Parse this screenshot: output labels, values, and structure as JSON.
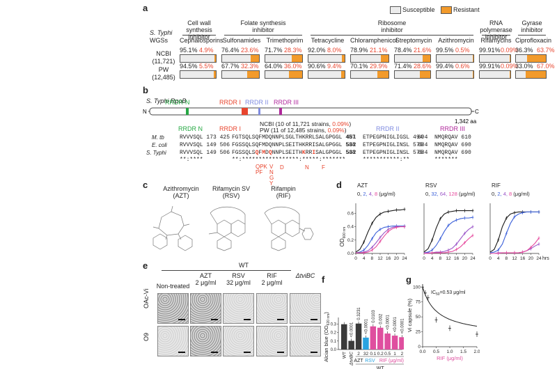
{
  "panels": {
    "a": "a",
    "b": "b",
    "c": "c",
    "d": "d",
    "e": "e",
    "f": "f",
    "g": "g"
  },
  "panel_a": {
    "legend": {
      "susceptible": "Susceptible",
      "resistant": "Resistant",
      "susceptible_color": "#ececec",
      "resistant_color": "#f29a2b"
    },
    "row_header_1": "S. Typhi",
    "row_header_2": "WGSs",
    "groups": [
      {
        "name": "Cell wall synthesis\ninhibitor",
        "drugs": [
          "Cephalosporins"
        ]
      },
      {
        "name": "Folate synthesis\ninhibitor",
        "drugs": [
          "Sulfonamides",
          "Trimethoprim"
        ]
      },
      {
        "name": "Ribosome\ninhibitor",
        "drugs": [
          "Tetracycline",
          "Chloramphenicol",
          "Streptomycin",
          "Azithromycin"
        ]
      },
      {
        "name": "RNA polymerase\ninhibitor",
        "drugs": [
          "Rifamycins"
        ]
      },
      {
        "name": "Gyrase\ninhibitor",
        "drugs": [
          "Ciprofloxacin"
        ]
      }
    ],
    "rows": [
      {
        "label": "NCBI",
        "count": "(11,721)",
        "susceptible": [
          "95.1%",
          "76.4%",
          "71.7%",
          "92.0%",
          "78.9%",
          "78.4%",
          "99.5%",
          "99.91%",
          "36.3%"
        ],
        "resistant": [
          "4.9%",
          "23.6%",
          "28.3%",
          "8.0%",
          "21.1%",
          "21.6%",
          "0.5%",
          "0.09%",
          "63.7%"
        ],
        "resistant_fraction": [
          0.049,
          0.236,
          0.283,
          0.08,
          0.211,
          0.216,
          0.005,
          0.0009,
          0.637
        ]
      },
      {
        "label": "PW",
        "count": "(12,485)",
        "susceptible": [
          "94.5%",
          "67.7%",
          "64.0%",
          "90.6%",
          "70.1%",
          "71.4%",
          "99.4%",
          "99.91%",
          "33.0%"
        ],
        "resistant": [
          "5.5%",
          "32.3%",
          "36.0%",
          "9.4%",
          "29.9%",
          "28.6%",
          "0.6%",
          "0.09%",
          "67.0%"
        ],
        "resistant_fraction": [
          0.055,
          0.323,
          0.36,
          0.094,
          0.299,
          0.286,
          0.006,
          0.0009,
          0.67
        ]
      }
    ]
  },
  "panel_b": {
    "protein_label": "S. Typhi RpoB",
    "n_term": "N",
    "c_term": "C",
    "length": "1,342 aa",
    "regions_top": [
      {
        "name": "RRDR-N",
        "color": "#27a844"
      },
      {
        "name": "RRDR I",
        "color": "#e8452e"
      },
      {
        "name": "RRDR II",
        "color": "#7f8be0"
      },
      {
        "name": "RRDR III",
        "color": "#b0279b"
      }
    ],
    "section_titles": [
      {
        "name": "RRDR N",
        "color": "#27a844"
      },
      {
        "name": "RRDR I",
        "color": "#e8452e"
      },
      {
        "name": "RRDR II",
        "color": "#7f8be0"
      },
      {
        "name": "RRDR III",
        "color": "#b0279b"
      }
    ],
    "ncbi_note_a": "NCBI (10 of 11,721 strains, ",
    "ncbi_note_b": "0.09%",
    "ncbi_note_c": ")",
    "pw_note_a": "PW (11 of 12,485 strains, ",
    "pw_note_b": "0.09%",
    "pw_note_c": ")",
    "sequences": [
      {
        "species": "M. tb",
        "n": "RVVVSQL 173 425",
        "i": "FGTSQLSQFMDQNNPLSGLTHKRRLSALGPGGL 457",
        "ii": "481  ETPEGPNIGLIGSL 494",
        "iii": "604  NMQRQAV 610"
      },
      {
        "species": "E. coli",
        "n": "RVVVSQL 149 506",
        "i": "FGSSQLSQFMDQNNPLSEITHKRRISALGPGGL 538",
        "ii": "562  ETPEGPNIGLINSL 575",
        "iii": "684  NMQRQAV 690"
      },
      {
        "species": "S. Typhi",
        "n": "RVVVSQL 149 506",
        "i_pre": "FGSSQLS",
        "i_red1": "Q",
        "i_mid1": "F",
        "i_red2": "M",
        "i_mid2": "D",
        "i_red3": "Q",
        "i_mid3": "NNPLSEITH",
        "i_red4": "K",
        "i_mid4": "RR",
        "i_red5": "I",
        "i_post": "SALGPGGL 538",
        "ii": "562  ETPEGPNIGLINSL 575",
        "iii": "684  NMQRQAV 690"
      }
    ],
    "conservation": {
      "n": "**:****",
      "i": "**:*****************:*****:*******",
      "ii": "***********:**",
      "iii": "*******"
    },
    "mutations": {
      "q": "QPK\nPF",
      "m": "V\nN\nG\nY",
      "d": "D",
      "k": "N",
      "i": "F"
    }
  },
  "panel_c": {
    "structures": [
      {
        "name": "Azithromycin",
        "abbr": "(AZT)"
      },
      {
        "name": "Rifamycin SV",
        "abbr": "(RSV)"
      },
      {
        "name": "Rifampin",
        "abbr": "(RIF)"
      }
    ]
  },
  "panel_d": {
    "ylabel": "OD",
    "ylabel_sub": "600 nm",
    "xunit": "hrs",
    "conc_unit": "(μg/ml)",
    "charts": [
      {
        "title": "AZT",
        "conc": [
          "0",
          "2",
          "4",
          "8"
        ]
      },
      {
        "title": "RSV",
        "conc": [
          "0",
          "32",
          "64",
          "128"
        ]
      },
      {
        "title": "RIF",
        "conc": [
          "0",
          "2",
          "4",
          "8"
        ]
      }
    ],
    "series_colors": [
      "#1a1a1a",
      "#3a5fd9",
      "#9a55c8",
      "#e6489c"
    ]
  },
  "panel_e": {
    "header": "WT",
    "columns": [
      {
        "line1": "Non-treated",
        "line2": ""
      },
      {
        "line1": "AZT",
        "line2": "2 μg/ml"
      },
      {
        "line1": "RSV",
        "line2": "32 μg/ml"
      },
      {
        "line1": "RIF",
        "line2": "2 μg/ml"
      },
      {
        "line1": "ΔtviBC",
        "line2": ""
      }
    ],
    "rows": [
      "OAc-Vi",
      "O9"
    ]
  },
  "panel_f": {
    "ylabel": "Alcian blue (OD",
    "ylabel_sub": "620 nm",
    "ylabel_end": ")",
    "wt_bottom": "WT",
    "group_labels": {
      "azt": "AZT",
      "rsv": "RSV",
      "rif": "RIF (μg/ml)"
    },
    "colors": {
      "dark": "#3a3a3a",
      "blue": "#29a3e0",
      "pink": "#df4f9f"
    }
  },
  "panel_g": {
    "ylabel": "Vi capsule (%)",
    "xlabel": "RIF (μg/ml)",
    "ic50": "IC",
    "ic50_sub": "50",
    "ic50_val": "=0.53 μg/ml"
  },
  "chart_data": [
    {
      "type": "line",
      "title": "AZT",
      "xlabel": "hrs",
      "ylabel": "OD 600 nm",
      "x": [
        0,
        2,
        4,
        6,
        8,
        10,
        12,
        14,
        16,
        18,
        20,
        22,
        24
      ],
      "xticks": [
        0,
        4,
        8,
        12,
        16,
        20,
        24
      ],
      "yticks": [
        0.0,
        0.2,
        0.4,
        0.6
      ],
      "ylim": [
        0,
        0.75
      ],
      "series": [
        {
          "name": "0",
          "values": [
            0.02,
            0.06,
            0.17,
            0.32,
            0.45,
            0.54,
            0.59,
            0.62,
            0.63,
            0.64,
            0.65,
            0.65,
            0.66
          ]
        },
        {
          "name": "2",
          "values": [
            0.01,
            0.02,
            0.05,
            0.12,
            0.22,
            0.31,
            0.36,
            0.39,
            0.4,
            0.41,
            0.41,
            0.41,
            0.41
          ]
        },
        {
          "name": "4",
          "values": [
            0.01,
            0.01,
            0.02,
            0.04,
            0.09,
            0.16,
            0.24,
            0.31,
            0.36,
            0.39,
            0.4,
            0.4,
            0.4
          ]
        },
        {
          "name": "8",
          "values": [
            0.01,
            0.01,
            0.01,
            0.02,
            0.05,
            0.1,
            0.18,
            0.26,
            0.33,
            0.37,
            0.39,
            0.4,
            0.4
          ]
        }
      ]
    },
    {
      "type": "line",
      "title": "RSV",
      "xlabel": "hrs",
      "ylabel": "OD 600 nm",
      "x": [
        0,
        2,
        4,
        6,
        8,
        10,
        12,
        14,
        16,
        18,
        20,
        22,
        24
      ],
      "xticks": [
        0,
        4,
        8,
        12,
        16,
        20,
        24
      ],
      "yticks": [
        0.0,
        0.2,
        0.4,
        0.6
      ],
      "ylim": [
        0,
        0.75
      ],
      "series": [
        {
          "name": "0",
          "values": [
            0.02,
            0.07,
            0.2,
            0.38,
            0.52,
            0.59,
            0.62,
            0.63,
            0.64,
            0.64,
            0.64,
            0.64,
            0.64
          ]
        },
        {
          "name": "32",
          "values": [
            0.01,
            0.02,
            0.05,
            0.12,
            0.22,
            0.33,
            0.42,
            0.47,
            0.5,
            0.52,
            0.53,
            0.53,
            0.54
          ]
        },
        {
          "name": "64",
          "values": [
            0.01,
            0.01,
            0.01,
            0.02,
            0.02,
            0.03,
            0.05,
            0.08,
            0.14,
            0.22,
            0.3,
            0.36,
            0.4
          ]
        },
        {
          "name": "128",
          "values": [
            0.0,
            0.0,
            0.01,
            0.01,
            0.01,
            0.01,
            0.02,
            0.03,
            0.06,
            0.1,
            0.16,
            0.22,
            0.27
          ]
        }
      ]
    },
    {
      "type": "line",
      "title": "RIF",
      "xlabel": "hrs",
      "ylabel": "OD 600 nm",
      "x": [
        0,
        2,
        4,
        6,
        8,
        10,
        12,
        14,
        16,
        18,
        20,
        22,
        24
      ],
      "xticks": [
        0,
        4,
        8,
        12,
        16,
        20,
        24
      ],
      "yticks": [
        0.0,
        0.2,
        0.4,
        0.6
      ],
      "ylim": [
        0,
        0.75
      ],
      "series": [
        {
          "name": "0",
          "values": [
            0.02,
            0.06,
            0.2,
            0.4,
            0.53,
            0.59,
            0.61,
            0.62,
            0.62,
            0.62,
            0.62,
            0.62,
            0.62
          ]
        },
        {
          "name": "2",
          "values": [
            0.01,
            0.02,
            0.05,
            0.14,
            0.3,
            0.45,
            0.55,
            0.59,
            0.61,
            0.62,
            0.62,
            0.62,
            0.62
          ]
        },
        {
          "name": "4",
          "values": [
            0.0,
            0.0,
            0.01,
            0.01,
            0.01,
            0.01,
            0.01,
            0.01,
            0.02,
            0.04,
            0.07,
            0.11,
            0.14
          ]
        },
        {
          "name": "8",
          "values": [
            0.0,
            0.0,
            0.0,
            0.01,
            0.01,
            0.01,
            0.01,
            0.01,
            0.02,
            0.04,
            0.09,
            0.15,
            0.23
          ]
        }
      ]
    },
    {
      "type": "bar",
      "title": "",
      "ylabel": "Alcian blue (OD 620 nm)",
      "categories": [
        "WT",
        "ΔtviBC",
        "2",
        "32",
        "0.1",
        "0.2",
        "0.5",
        "1",
        "2"
      ],
      "values": [
        0.297,
        0.102,
        0.305,
        0.14,
        0.272,
        0.256,
        0.188,
        0.163,
        0.145
      ],
      "groups": [
        "control",
        "control",
        "AZT",
        "RSV",
        "RIF",
        "RIF",
        "RIF",
        "RIF",
        "RIF"
      ],
      "pvalues": [
        "",
        "<0.0001",
        "0.3231",
        "<0.0001",
        "0.0103",
        "0.002",
        "<0.0001",
        "<0.0001",
        "<0.0001"
      ],
      "yticks": [
        0.0,
        0.1,
        0.2,
        0.3
      ],
      "ylim": [
        0,
        0.36
      ]
    },
    {
      "type": "line",
      "title": "",
      "xlabel": "RIF (μg/ml)",
      "ylabel": "Vi capsule (%)",
      "x": [
        0.0,
        0.1,
        0.2,
        0.5,
        1.0,
        2.0
      ],
      "values": [
        100,
        90,
        82,
        45,
        31,
        21
      ],
      "xticks": [
        0.0,
        0.5,
        1.0,
        1.5,
        2.0
      ],
      "yticks": [
        0,
        25,
        50,
        75,
        100
      ],
      "ylim": [
        0,
        105
      ],
      "annotation": "IC50=0.53 μg/ml"
    }
  ]
}
